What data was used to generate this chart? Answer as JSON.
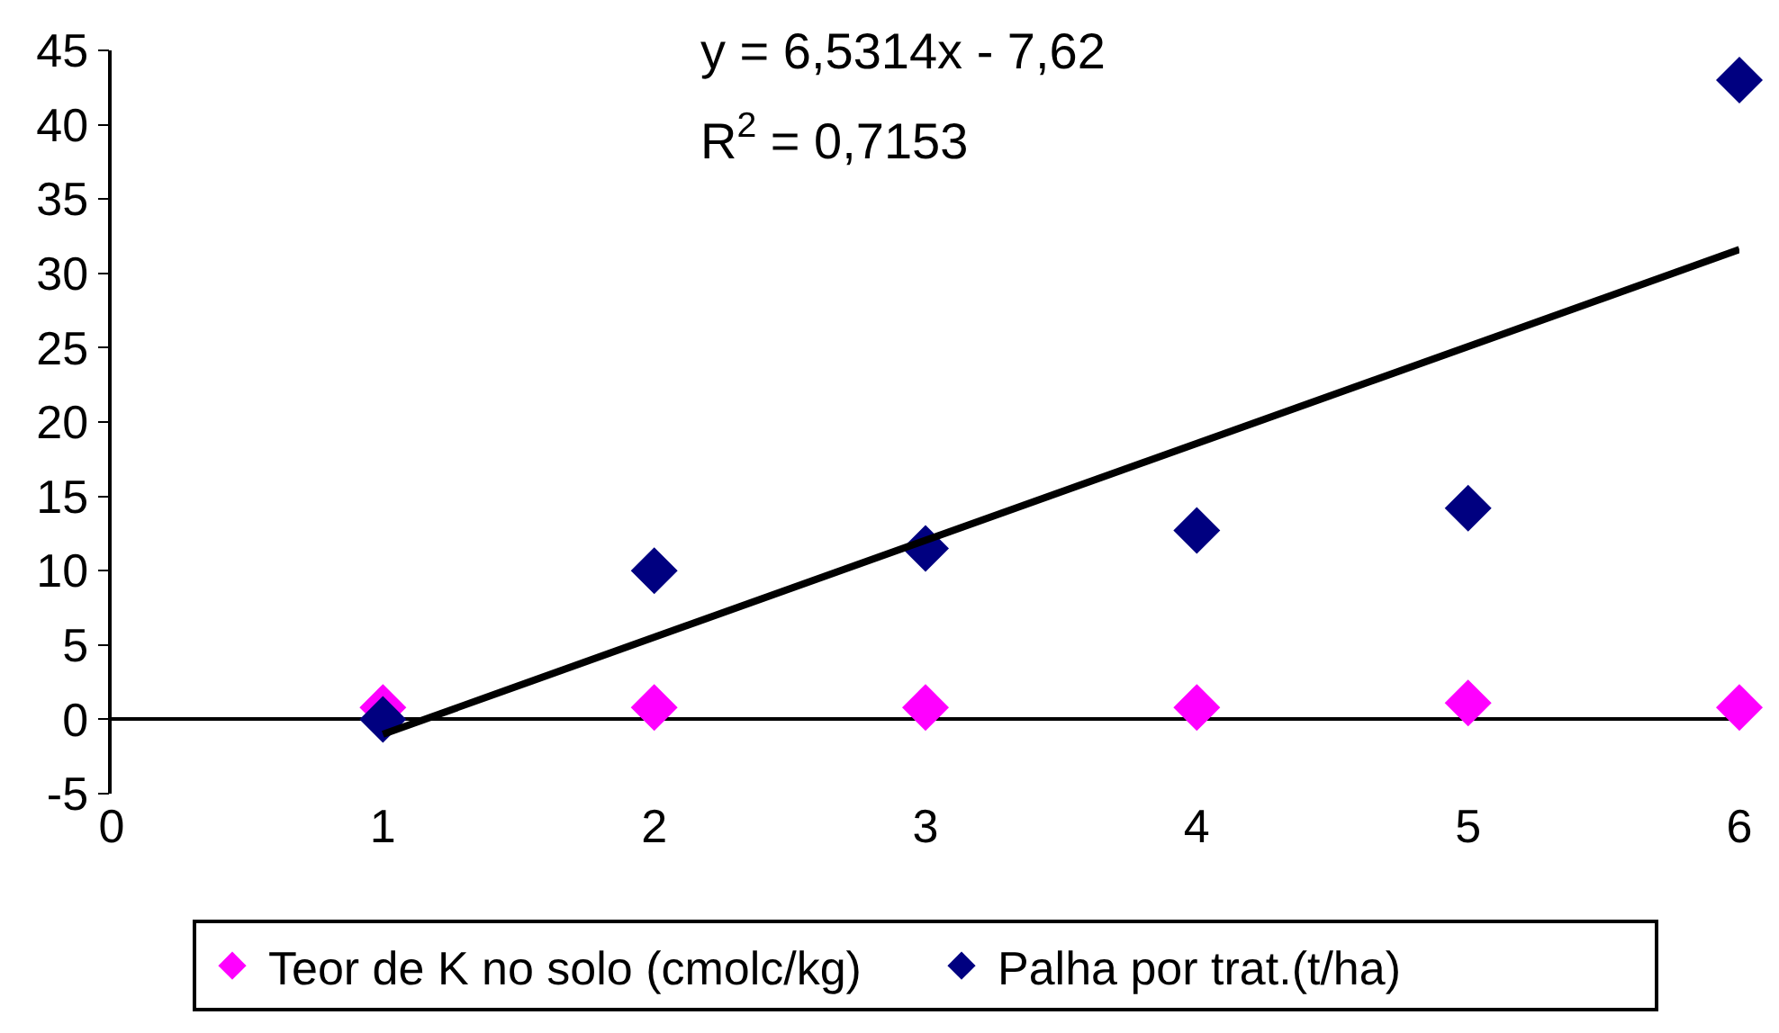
{
  "chart_data": {
    "type": "scatter",
    "x": [
      1,
      2,
      3,
      4,
      5,
      6
    ],
    "series": [
      {
        "name": "Teor de K no solo (cmolc/kg)",
        "color": "#ff00ff",
        "values": [
          0.8,
          0.8,
          0.8,
          0.8,
          1.1,
          0.8
        ]
      },
      {
        "name": "Palha por trat.(t/ha)",
        "color": "#000080",
        "values": [
          0,
          10,
          11.5,
          12.7,
          14.2,
          43
        ]
      },
      {
        "type": "line",
        "color": "#000000",
        "marker": "none",
        "x": [
          1,
          6
        ],
        "values": [
          -1,
          31.6
        ]
      }
    ],
    "annotations": [
      "y = 6,5314x - 7,62",
      "R$^{2}$ = 0,7153"
    ],
    "xlim": [
      0,
      6
    ],
    "xticks": [
      0,
      1,
      2,
      3,
      4,
      5,
      6
    ],
    "ylim": [
      -5,
      45
    ],
    "yticks": [
      -5,
      0,
      5,
      10,
      15,
      20,
      25,
      30,
      35,
      40,
      45
    ],
    "marker": "diamond",
    "legend": "bottom"
  }
}
